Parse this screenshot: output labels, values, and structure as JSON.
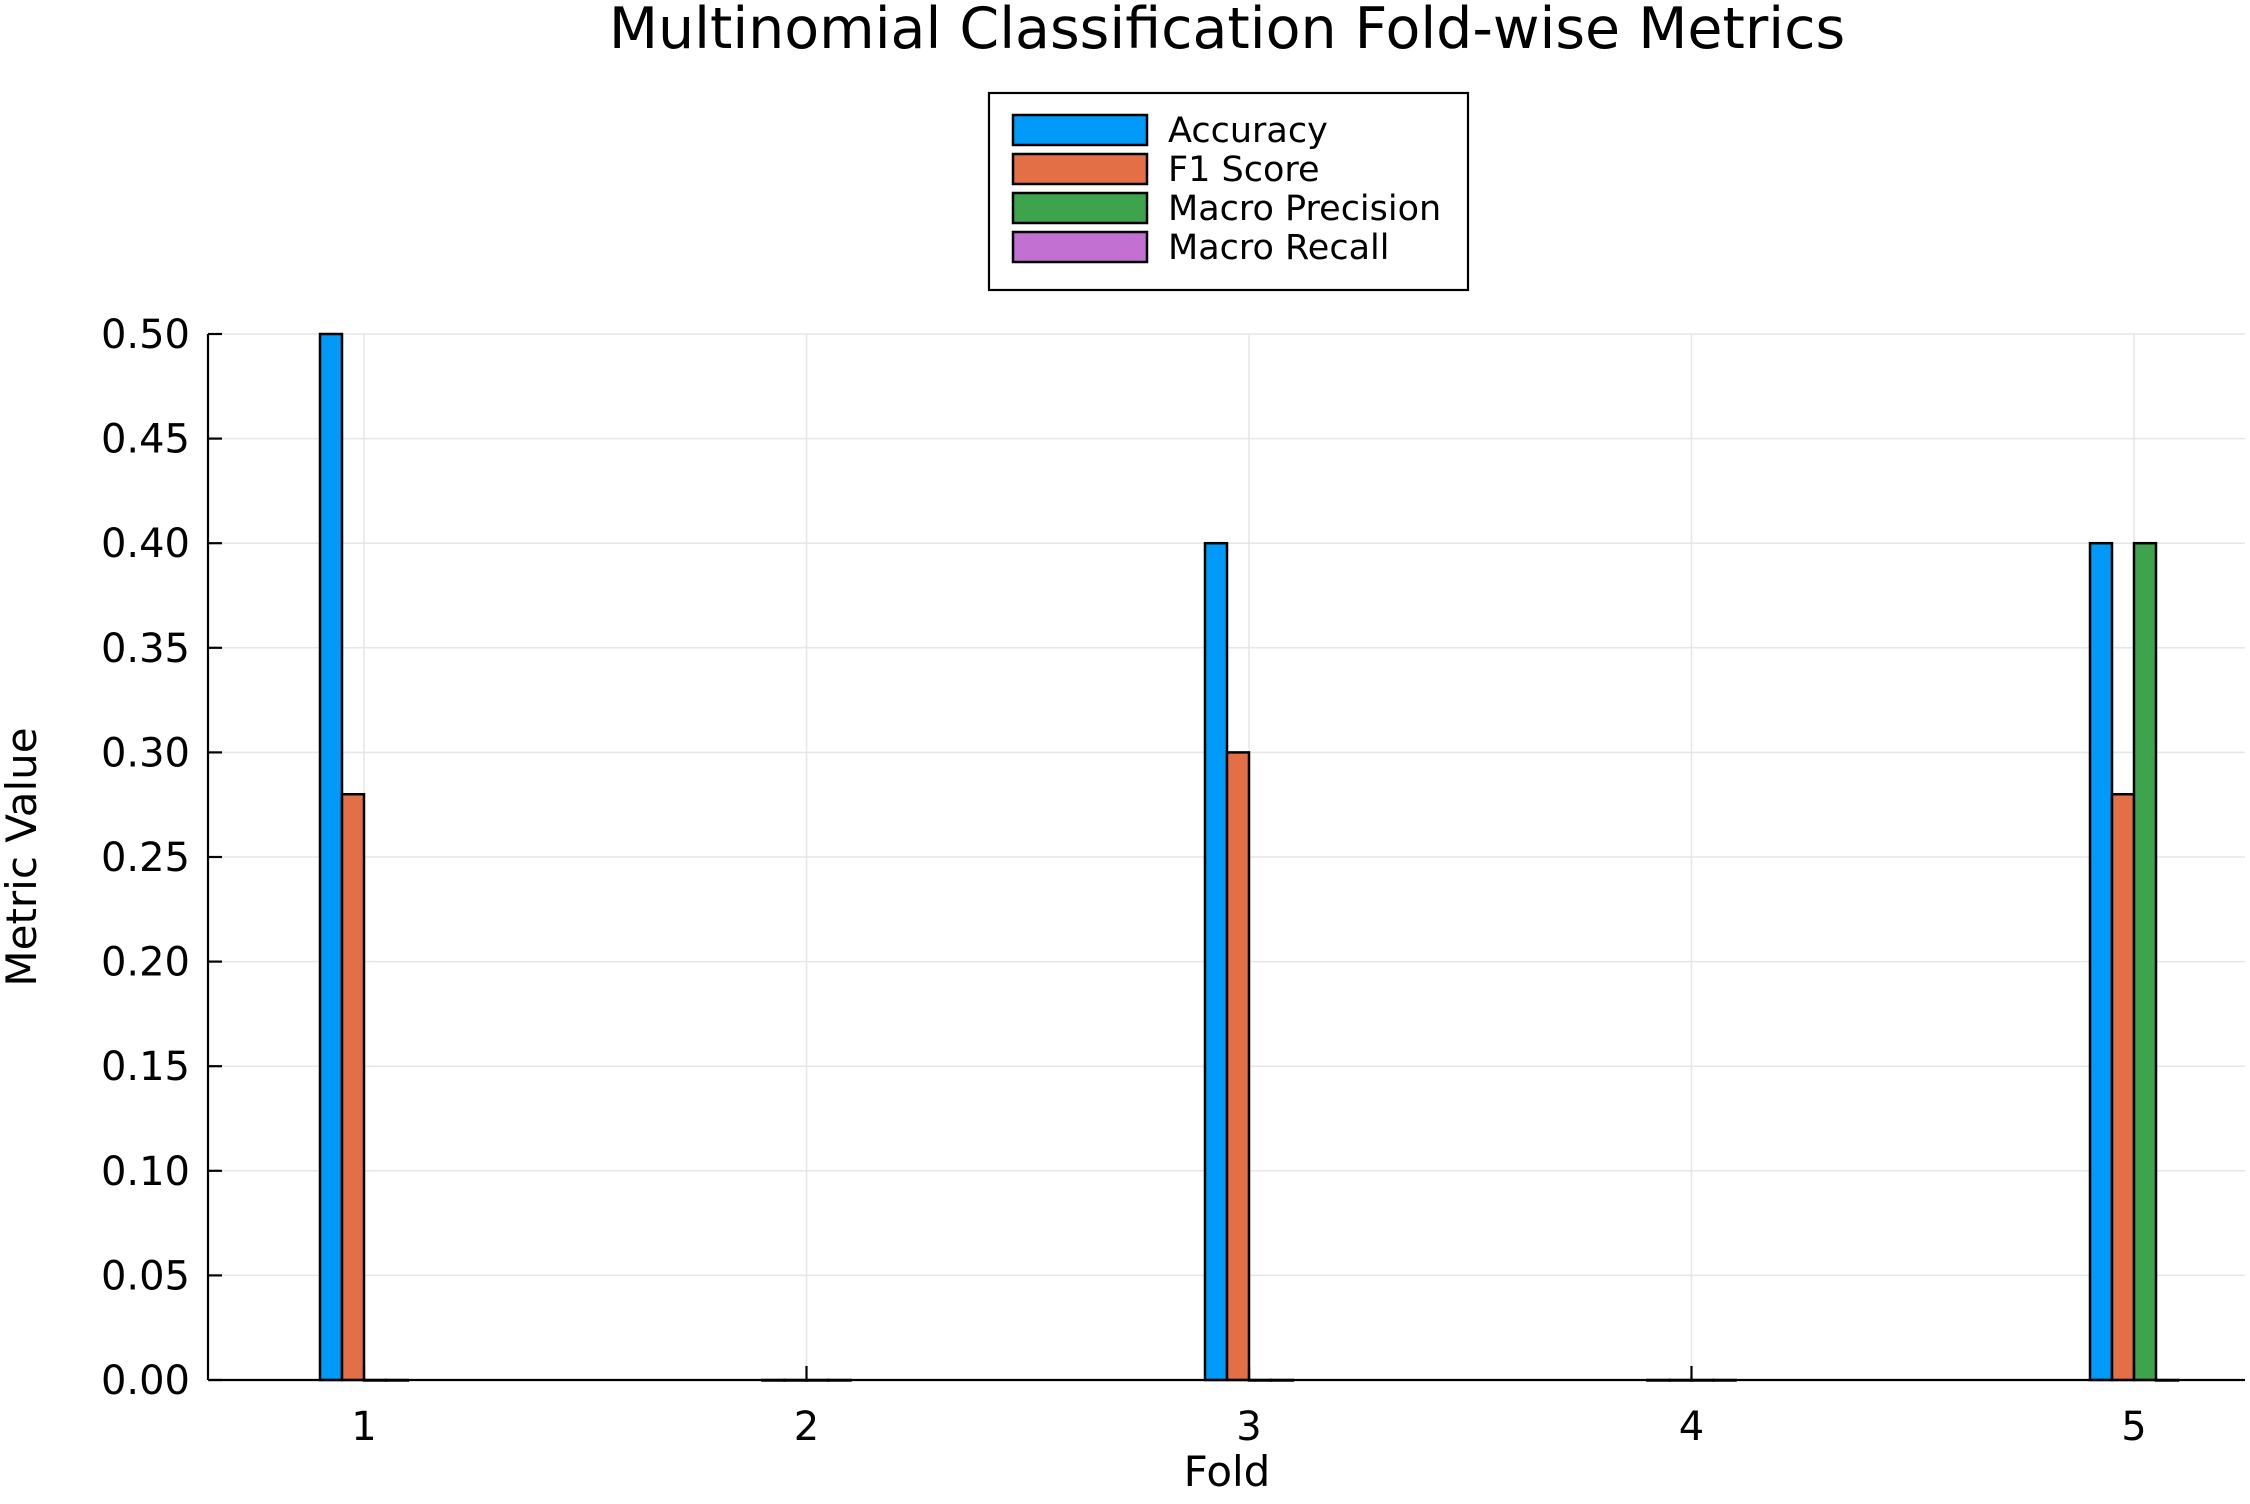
{
  "chart_data": {
    "type": "bar",
    "title": "Multinomial Classification Fold-wise Metrics",
    "xlabel": "Fold",
    "ylabel": "Metric Value",
    "categories": [
      "1",
      "2",
      "3",
      "4",
      "5"
    ],
    "x_ticks": [
      "1",
      "2",
      "3",
      "4",
      "5"
    ],
    "y_ticks": [
      "0.00",
      "0.05",
      "0.10",
      "0.15",
      "0.20",
      "0.25",
      "0.30",
      "0.35",
      "0.40",
      "0.45",
      "0.50"
    ],
    "ylim": [
      0,
      0.5
    ],
    "grid": true,
    "legend_position": "top-center",
    "series": [
      {
        "name": "Accuracy",
        "color": "#009af9",
        "values": [
          0.5,
          0.0,
          0.4,
          0.0,
          0.4
        ]
      },
      {
        "name": "F1 Score",
        "color": "#e26f46",
        "values": [
          0.28,
          0.0,
          0.3,
          0.0,
          0.28
        ]
      },
      {
        "name": "Macro Precision",
        "color": "#3da44d",
        "values": [
          0.0,
          0.0,
          0.0,
          0.0,
          0.4
        ]
      },
      {
        "name": "Macro Recall",
        "color": "#c271d2",
        "values": [
          0.0,
          0.0,
          0.0,
          0.0,
          0.0
        ]
      }
    ]
  }
}
